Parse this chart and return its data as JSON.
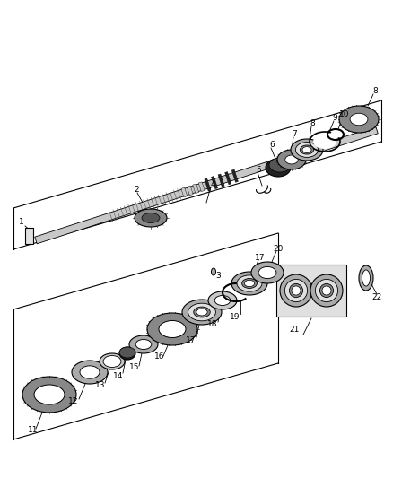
{
  "bg_color": "#ffffff",
  "lc": "#000000",
  "figsize": [
    4.38,
    5.33
  ],
  "dpi": 100,
  "gray1": "#c8c8c8",
  "gray2": "#aaaaaa",
  "gray3": "#888888",
  "gray4": "#555555",
  "dark": "#222222",
  "white": "#ffffff",
  "lightgray": "#e0e0e0"
}
